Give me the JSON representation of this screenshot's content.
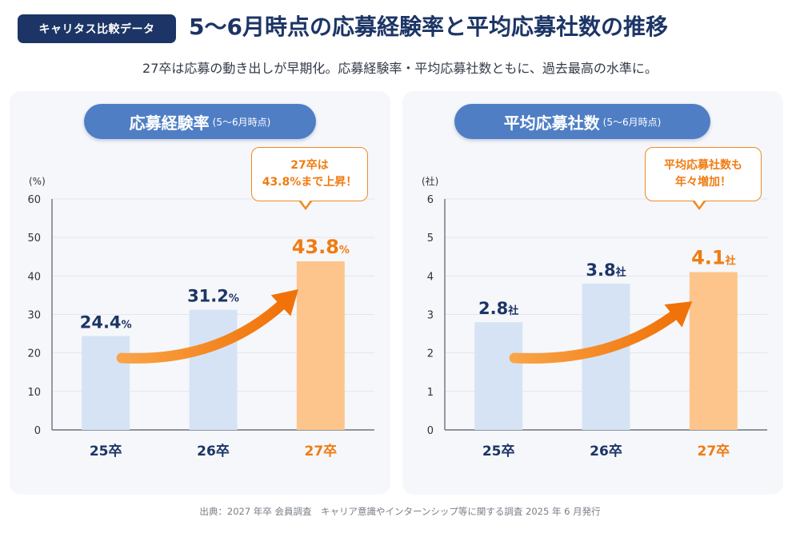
{
  "header": {
    "badge": "キャリタス比較データ",
    "title": "5〜6月時点の応募経験率と平均応募社数の推移",
    "subtitle": "27卒は応募の動き出しが早期化。応募経験率・平均応募社数ともに、過去最高の水準に。"
  },
  "colors": {
    "navy": "#1c3566",
    "pill_blue": "#4f7ec4",
    "bar_past": "#d6e3f5",
    "bar_highlight": "#fdc58c",
    "accent_orange": "#f07c12"
  },
  "chart_data": [
    {
      "type": "bar",
      "title": "応募経験率",
      "title_sub": "(5〜6月時点)",
      "unit_label": "(%)",
      "categories": [
        "25卒",
        "26卒",
        "27卒"
      ],
      "values": [
        24.4,
        31.2,
        43.8
      ],
      "value_unit": "%",
      "ylim": [
        0,
        60
      ],
      "yticks": [
        0,
        10,
        20,
        30,
        40,
        50,
        60
      ],
      "grid": true,
      "highlight_index": 2,
      "callout": [
        "27卒は",
        "43.8%まで上昇！"
      ]
    },
    {
      "type": "bar",
      "title": "平均応募社数",
      "title_sub": "(5〜6月時点)",
      "unit_label": "(社)",
      "categories": [
        "25卒",
        "26卒",
        "27卒"
      ],
      "values": [
        2.8,
        3.8,
        4.1
      ],
      "value_unit": "社",
      "ylim": [
        0,
        6
      ],
      "yticks": [
        0,
        1,
        2,
        3,
        4,
        5,
        6
      ],
      "grid": true,
      "highlight_index": 2,
      "callout": [
        "平均応募社数も",
        "年々増加！"
      ]
    }
  ],
  "footer": {
    "source": "出典：2027 年卒 会員調査　キャリア意識やインターンシップ等に関する調査 2025 年 6 月発行"
  }
}
